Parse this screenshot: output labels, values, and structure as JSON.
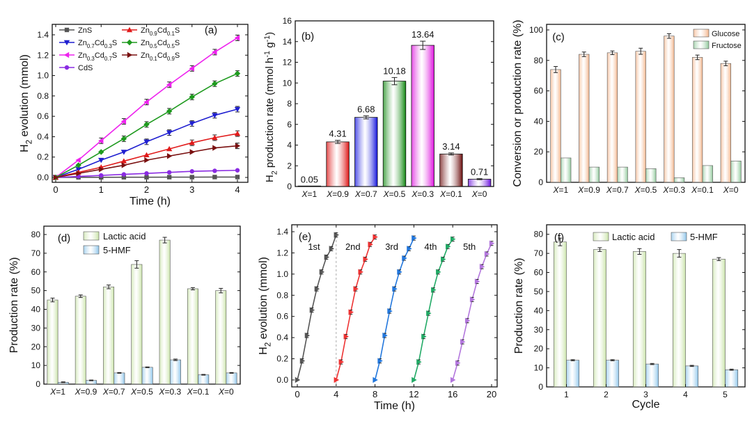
{
  "figure": {
    "panels": [
      "(a)",
      "(b)",
      "(c)",
      "(d)",
      "(e)",
      "(f)"
    ]
  },
  "chart_data": [
    {
      "id": "a",
      "type": "line",
      "label": "(a)",
      "xlabel": "Time (h)",
      "ylabel_main": "H",
      "ylabel_sub": "2",
      "ylabel_rest": " evolution (mmol)",
      "xlim": [
        0,
        4
      ],
      "ylim": [
        0,
        1.4
      ],
      "xticks": [
        0,
        1,
        2,
        3,
        4
      ],
      "yticks": [
        0.0,
        0.2,
        0.4,
        0.6,
        0.8,
        1.0,
        1.2,
        1.4
      ],
      "ytick_labels": [
        "0.0",
        "0.2",
        "0.4",
        "0.6",
        "0.8",
        "1.0",
        "1.2",
        "1.4"
      ],
      "x": [
        0,
        0.5,
        1,
        1.5,
        2,
        2.5,
        3,
        3.5,
        4
      ],
      "series": [
        {
          "name": "ZnS",
          "legend": [
            [
              "ZnS",
              ""
            ]
          ],
          "color": "#555555",
          "marker": "square",
          "values": [
            0,
            0.001,
            0.001,
            0.002,
            0.002,
            0.003,
            0.003,
            0.004,
            0.004
          ]
        },
        {
          "name": "Zn0.7Cd0.3S",
          "legend": [
            [
              "Zn",
              ""
            ],
            [
              "0.7",
              "sub"
            ],
            [
              "Cd",
              ""
            ],
            [
              "0.3",
              "sub"
            ],
            [
              "S",
              ""
            ]
          ],
          "color": "#1f1fd0",
          "marker": "tri-down",
          "values": [
            0,
            0.08,
            0.17,
            0.25,
            0.35,
            0.44,
            0.53,
            0.61,
            0.67
          ]
        },
        {
          "name": "Zn0.3Cd0.7S",
          "legend": [
            [
              "Zn",
              ""
            ],
            [
              "0.3",
              "sub"
            ],
            [
              "Cd",
              ""
            ],
            [
              "0.7",
              "sub"
            ],
            [
              "S",
              ""
            ]
          ],
          "color": "#ee22ee",
          "marker": "tri-left",
          "values": [
            0,
            0.17,
            0.36,
            0.55,
            0.74,
            0.91,
            1.07,
            1.23,
            1.37
          ]
        },
        {
          "name": "CdS",
          "legend": [
            [
              "CdS",
              ""
            ]
          ],
          "color": "#8a2be2",
          "marker": "circle",
          "values": [
            0,
            0.01,
            0.02,
            0.03,
            0.04,
            0.05,
            0.06,
            0.065,
            0.07
          ]
        },
        {
          "name": "Zn0.9Cd0.1S",
          "legend": [
            [
              "Zn",
              ""
            ],
            [
              "0.9",
              "sub"
            ],
            [
              "Cd",
              ""
            ],
            [
              "0.1",
              "sub"
            ],
            [
              "S",
              ""
            ]
          ],
          "color": "#e11b1b",
          "marker": "tri-up",
          "values": [
            0,
            0.05,
            0.1,
            0.16,
            0.22,
            0.28,
            0.34,
            0.39,
            0.43
          ]
        },
        {
          "name": "Zn0.5Cd0.5S",
          "legend": [
            [
              "Zn",
              ""
            ],
            [
              "0.5",
              "sub"
            ],
            [
              "Cd",
              ""
            ],
            [
              "0.5",
              "sub"
            ],
            [
              "S",
              ""
            ]
          ],
          "color": "#1e9a1e",
          "marker": "diamond",
          "values": [
            0,
            0.12,
            0.25,
            0.38,
            0.52,
            0.65,
            0.79,
            0.92,
            1.02
          ]
        },
        {
          "name": "Zn0.1Cd0.9S",
          "legend": [
            [
              "Zn",
              ""
            ],
            [
              "0.1",
              "sub"
            ],
            [
              "Cd",
              ""
            ],
            [
              "0.9",
              "sub"
            ],
            [
              "S",
              ""
            ]
          ],
          "color": "#7a1010",
          "marker": "tri-right",
          "values": [
            0,
            0.04,
            0.08,
            0.12,
            0.17,
            0.21,
            0.25,
            0.29,
            0.31
          ]
        }
      ]
    },
    {
      "id": "b",
      "type": "bar",
      "label": "(b)",
      "ylabel_main": "H",
      "ylabel_sub": "2",
      "ylabel_rest": " production rate (mmol h",
      "ylabel_sup1": "-1",
      "ylabel_mid": " g",
      "ylabel_sup2": "-1",
      "ylabel_end": ")",
      "ylim": [
        0,
        16
      ],
      "yticks": [
        0,
        2,
        4,
        6,
        8,
        10,
        12,
        14,
        16
      ],
      "categories": [
        "1",
        "0.9",
        "0.7",
        "0.5",
        "0.3",
        "0.1",
        "0"
      ],
      "cat_prefix": "X",
      "values": [
        0.05,
        4.31,
        6.68,
        10.18,
        13.64,
        3.14,
        0.71
      ],
      "data_labels": [
        "0.05",
        "4.31",
        "6.68",
        "10.18",
        "13.64",
        "3.14",
        "0.71"
      ],
      "errors": [
        0,
        0.15,
        0.15,
        0.35,
        0.4,
        0.1,
        0.05
      ],
      "colors": [
        "#555555",
        "#dd1111",
        "#1111dd",
        "#118811",
        "#dd11dd",
        "#6a0b0b",
        "#6a11dd"
      ]
    },
    {
      "id": "c",
      "type": "bar",
      "label": "(c)",
      "ylabel": "Conversion or production rate (%)",
      "ylim": [
        0,
        100
      ],
      "yticks": [
        0,
        20,
        40,
        60,
        80,
        100
      ],
      "categories": [
        "1",
        "0.9",
        "0.7",
        "0.5",
        "0.3",
        "0.1",
        "0"
      ],
      "cat_prefix": "X",
      "legend_position": "top-right",
      "series": [
        {
          "name": "Glucose",
          "color": "#f3b48a",
          "values": [
            74,
            84,
            85,
            86,
            96,
            82,
            78
          ],
          "errors": [
            2,
            1.5,
            1.2,
            2,
            1.5,
            1.5,
            1.5
          ]
        },
        {
          "name": "Fructose",
          "color": "#8fc89a",
          "values": [
            16,
            10,
            10,
            9,
            3,
            11,
            14
          ],
          "errors": [
            0,
            0,
            0,
            0,
            0,
            0,
            0
          ]
        }
      ]
    },
    {
      "id": "d",
      "type": "bar",
      "label": "(d)",
      "ylabel": "Production rate (%)",
      "ylim": [
        0,
        80
      ],
      "yticks": [
        0,
        10,
        20,
        30,
        40,
        50,
        60,
        70,
        80
      ],
      "categories": [
        "1",
        "0.9",
        "0.7",
        "0.5",
        "0.3",
        "0.1",
        "0"
      ],
      "cat_prefix": "X",
      "legend_position": "top-left",
      "series": [
        {
          "name": "Lactic acid",
          "color": "#c9e3a8",
          "values": [
            45,
            47,
            52,
            64,
            77,
            51,
            50
          ],
          "errors": [
            1,
            0.7,
            1,
            2,
            1.5,
            0.6,
            1.2
          ]
        },
        {
          "name": "5-HMF",
          "color": "#8ec5ea",
          "values": [
            1,
            2,
            6,
            9,
            13,
            5,
            6
          ],
          "errors": [
            0.2,
            0.2,
            0.2,
            0.2,
            0.4,
            0.2,
            0.2
          ]
        }
      ]
    },
    {
      "id": "e",
      "type": "line",
      "label": "(e)",
      "xlabel": "Time (h)",
      "ylabel_main": "H",
      "ylabel_sub": "2",
      "ylabel_rest": " evolution (mmol)",
      "xlim": [
        0,
        20
      ],
      "ylim": [
        0,
        1.4
      ],
      "xticks": [
        0,
        4,
        8,
        12,
        16,
        20
      ],
      "yticks": [
        0.0,
        0.2,
        0.4,
        0.6,
        0.8,
        1.0,
        1.2,
        1.4
      ],
      "ytick_labels": [
        "0.0",
        "0.2",
        "0.4",
        "0.6",
        "0.8",
        "1.0",
        "1.2",
        "1.4"
      ],
      "divider_x": 4,
      "series": [
        {
          "name": "1st",
          "color": "#555555",
          "x": [
            0,
            0.5,
            1,
            1.5,
            2,
            2.5,
            3,
            3.5,
            4
          ],
          "values": [
            0,
            0.18,
            0.42,
            0.66,
            0.86,
            1.02,
            1.16,
            1.24,
            1.37
          ]
        },
        {
          "name": "2nd",
          "color": "#ee3333",
          "x": [
            4,
            4.5,
            5,
            5.5,
            6,
            6.5,
            7,
            7.5,
            8
          ],
          "values": [
            0,
            0.17,
            0.41,
            0.64,
            0.86,
            1.02,
            1.14,
            1.28,
            1.35
          ]
        },
        {
          "name": "3rd",
          "color": "#2277dd",
          "x": [
            8,
            8.5,
            9,
            9.5,
            10,
            10.5,
            11,
            11.5,
            12
          ],
          "values": [
            0,
            0.18,
            0.42,
            0.65,
            0.86,
            1.02,
            1.15,
            1.24,
            1.34
          ]
        },
        {
          "name": "4th",
          "color": "#22aa66",
          "x": [
            12,
            12.5,
            13,
            13.5,
            14,
            14.5,
            15,
            15.5,
            16
          ],
          "values": [
            0,
            0.17,
            0.41,
            0.63,
            0.85,
            1.02,
            1.14,
            1.26,
            1.33
          ]
        },
        {
          "name": "5th",
          "color": "#b377dd",
          "x": [
            16,
            16.5,
            17,
            17.5,
            18,
            18.5,
            19,
            19.5,
            20
          ],
          "values": [
            0,
            0.16,
            0.36,
            0.56,
            0.76,
            0.93,
            1.07,
            1.19,
            1.29
          ]
        }
      ]
    },
    {
      "id": "f",
      "type": "bar",
      "label": "(f)",
      "xlabel": "Cycle",
      "ylabel": "Production rate (%)",
      "ylim": [
        0,
        85
      ],
      "yticks": [
        0,
        10,
        20,
        30,
        40,
        50,
        60,
        70,
        80
      ],
      "categories": [
        "1",
        "2",
        "3",
        "4",
        "5"
      ],
      "legend_position": "top",
      "series": [
        {
          "name": "Lactic acid",
          "color": "#c9e3a8",
          "values": [
            76,
            72,
            71,
            70,
            67
          ],
          "errors": [
            2,
            1,
            1.5,
            2,
            0.8
          ]
        },
        {
          "name": "5-HMF",
          "color": "#8ec5ea",
          "values": [
            14,
            14,
            12,
            11,
            9
          ],
          "errors": [
            0.3,
            0.3,
            0.3,
            0.3,
            0.3
          ]
        }
      ]
    }
  ]
}
